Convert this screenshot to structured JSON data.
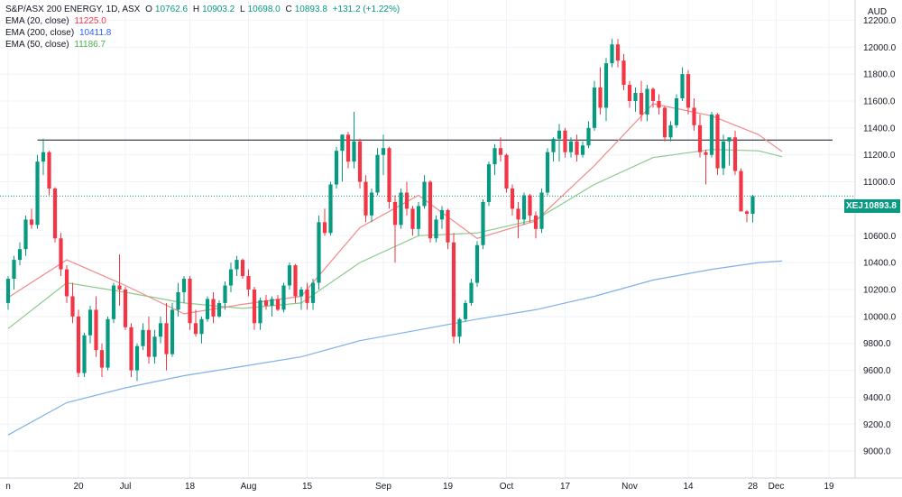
{
  "title_bar": {
    "symbol": "S&P/ASX 200 ENERGY, 1D, ASX",
    "open_label": "O",
    "open": "10762.6",
    "high_label": "H",
    "high": "10903.2",
    "low_label": "L",
    "low": "10698.0",
    "close_label": "C",
    "close": "10893.8",
    "change": "+131.2 (+1.22%)"
  },
  "currency": "AUD",
  "indicators": [
    {
      "name": "EMA (20, close)",
      "value": "11225.0",
      "color": "#f23645"
    },
    {
      "name": "EMA (200, close)",
      "value": "10411.8",
      "color": "#2962ff"
    },
    {
      "name": "EMA (50, close)",
      "value": "11186.7",
      "color": "#4caf50"
    }
  ],
  "last_price": {
    "symbol": "XEJ",
    "value": "10893.8",
    "color": "#089981"
  },
  "chart_data": {
    "type": "candlestick",
    "ylim": [
      8800,
      12350
    ],
    "y_ticks": [
      9000,
      9200,
      9400,
      9600,
      9800,
      10000,
      10200,
      10400,
      10600,
      10800,
      11000,
      11200,
      11400,
      11600,
      11800,
      12000,
      12200
    ],
    "y_tick_labels": [
      "9000.0",
      "9200.0",
      "9400.0",
      "9600.0",
      "9800.0",
      "10000.0",
      "10200.0",
      "10400.0",
      "10600.0",
      "10800.0",
      "11000.0",
      "11200.0",
      "11400.0",
      "11600.0",
      "11800.0",
      "12000.0",
      "12200.0"
    ],
    "x_tick_labels": [
      {
        "i": 0,
        "label": "n"
      },
      {
        "i": 12,
        "label": "20"
      },
      {
        "i": 20,
        "label": "Jul"
      },
      {
        "i": 31,
        "label": "18"
      },
      {
        "i": 41,
        "label": "Aug"
      },
      {
        "i": 51,
        "label": "15"
      },
      {
        "i": 64,
        "label": "Sep"
      },
      {
        "i": 75,
        "label": "19"
      },
      {
        "i": 85,
        "label": "Oct"
      },
      {
        "i": 95,
        "label": "17"
      },
      {
        "i": 106,
        "label": "Nov"
      },
      {
        "i": 116,
        "label": "14"
      },
      {
        "i": 127,
        "label": "28"
      },
      {
        "i": 131,
        "label": "Dec"
      },
      {
        "i": 140,
        "label": "19"
      }
    ],
    "resistance": 11310,
    "ohlc": [
      [
        10100,
        10300,
        10050,
        10280
      ],
      [
        10280,
        10450,
        10200,
        10420
      ],
      [
        10420,
        10550,
        10380,
        10500
      ],
      [
        10500,
        10750,
        10450,
        10720
      ],
      [
        10720,
        10800,
        10650,
        10680
      ],
      [
        10680,
        11200,
        10650,
        11150
      ],
      [
        11150,
        11320,
        11050,
        11220
      ],
      [
        11220,
        11230,
        10900,
        10950
      ],
      [
        10950,
        10960,
        10550,
        10580
      ],
      [
        10580,
        10620,
        10300,
        10350
      ],
      [
        10350,
        10380,
        10100,
        10150
      ],
      [
        10150,
        10250,
        9950,
        10000
      ],
      [
        10000,
        10050,
        9550,
        9580
      ],
      [
        9580,
        9880,
        9550,
        9860
      ],
      [
        9860,
        10080,
        9800,
        10050
      ],
      [
        10050,
        10150,
        9700,
        9750
      ],
      [
        9750,
        9800,
        9550,
        9620
      ],
      [
        9620,
        10000,
        9600,
        9980
      ],
      [
        9980,
        10250,
        9950,
        10230
      ],
      [
        10230,
        10460,
        10080,
        10200
      ],
      [
        10200,
        10220,
        9900,
        9920
      ],
      [
        9920,
        9950,
        9550,
        9600
      ],
      [
        9600,
        9800,
        9520,
        9780
      ],
      [
        9780,
        9950,
        9750,
        9900
      ],
      [
        9900,
        10000,
        9650,
        9700
      ],
      [
        9700,
        9900,
        9650,
        9850
      ],
      [
        9850,
        10000,
        9800,
        9950
      ],
      [
        9950,
        10100,
        9600,
        9720
      ],
      [
        9720,
        10100,
        9700,
        10050
      ],
      [
        10050,
        10250,
        10000,
        10180
      ],
      [
        10180,
        10300,
        10100,
        10280
      ],
      [
        10280,
        10300,
        9900,
        9950
      ],
      [
        9950,
        10050,
        9850,
        9870
      ],
      [
        9870,
        10000,
        9800,
        9980
      ],
      [
        9980,
        10150,
        9960,
        10130
      ],
      [
        10130,
        10180,
        9950,
        10000
      ],
      [
        10000,
        10120,
        9990,
        10100
      ],
      [
        10100,
        10260,
        10050,
        10230
      ],
      [
        10230,
        10400,
        10180,
        10350
      ],
      [
        10350,
        10450,
        10300,
        10420
      ],
      [
        10420,
        10430,
        10280,
        10300
      ],
      [
        10300,
        10350,
        10150,
        10200
      ],
      [
        10200,
        10220,
        9900,
        9950
      ],
      [
        9950,
        10140,
        9900,
        10120
      ],
      [
        10120,
        10160,
        10050,
        10080
      ],
      [
        10080,
        10150,
        10000,
        10130
      ],
      [
        10130,
        10160,
        10040,
        10050
      ],
      [
        10050,
        10250,
        10030,
        10230
      ],
      [
        10230,
        10400,
        10200,
        10380
      ],
      [
        10380,
        10390,
        10100,
        10150
      ],
      [
        10150,
        10220,
        10050,
        10200
      ],
      [
        10200,
        10250,
        10050,
        10100
      ],
      [
        10100,
        10280,
        10050,
        10250
      ],
      [
        10250,
        10750,
        10200,
        10700
      ],
      [
        10700,
        10800,
        10600,
        10620
      ],
      [
        10620,
        11000,
        10600,
        10980
      ],
      [
        10980,
        11260,
        10950,
        11230
      ],
      [
        11230,
        11350,
        11000,
        11350
      ],
      [
        11350,
        11370,
        11100,
        11150
      ],
      [
        11150,
        11520,
        11100,
        11300
      ],
      [
        11300,
        11320,
        10950,
        11000
      ],
      [
        11000,
        11050,
        10700,
        10750
      ],
      [
        10750,
        10950,
        10700,
        10920
      ],
      [
        10920,
        11250,
        10900,
        11200
      ],
      [
        11200,
        11350,
        11050,
        11250
      ],
      [
        11250,
        11260,
        10800,
        10850
      ],
      [
        10850,
        10900,
        10400,
        10680
      ],
      [
        10680,
        10950,
        10650,
        10920
      ],
      [
        10920,
        11000,
        10750,
        10800
      ],
      [
        10800,
        10820,
        10600,
        10650
      ],
      [
        10650,
        10850,
        10600,
        10820
      ],
      [
        10820,
        11050,
        10800,
        11000
      ],
      [
        11000,
        11010,
        10550,
        10580
      ],
      [
        10580,
        10750,
        10550,
        10720
      ],
      [
        10720,
        10820,
        10650,
        10790
      ],
      [
        10790,
        10800,
        10500,
        10550
      ],
      [
        10550,
        10620,
        9800,
        9850
      ],
      [
        9850,
        9990,
        9800,
        9980
      ],
      [
        9980,
        10120,
        9960,
        10100
      ],
      [
        10100,
        10280,
        10080,
        10250
      ],
      [
        10250,
        10560,
        10220,
        10530
      ],
      [
        10530,
        10870,
        10500,
        10850
      ],
      [
        10850,
        11150,
        10820,
        11130
      ],
      [
        11130,
        11280,
        11050,
        11250
      ],
      [
        11250,
        11330,
        11150,
        11200
      ],
      [
        11200,
        11210,
        10920,
        10950
      ],
      [
        10950,
        10980,
        10750,
        10800
      ],
      [
        10800,
        10850,
        10580,
        10720
      ],
      [
        10720,
        10920,
        10680,
        10900
      ],
      [
        10900,
        10910,
        10700,
        10750
      ],
      [
        10750,
        10780,
        10580,
        10650
      ],
      [
        10650,
        10950,
        10620,
        10920
      ],
      [
        10920,
        11250,
        10900,
        11220
      ],
      [
        11220,
        11330,
        11150,
        11320
      ],
      [
        11320,
        11430,
        11150,
        11380
      ],
      [
        11380,
        11400,
        11180,
        11220
      ],
      [
        11220,
        11330,
        11180,
        11300
      ],
      [
        11300,
        11350,
        11150,
        11200
      ],
      [
        11200,
        11300,
        11180,
        11270
      ],
      [
        11270,
        11450,
        11250,
        11400
      ],
      [
        11400,
        11750,
        11380,
        11700
      ],
      [
        11700,
        11850,
        11500,
        11550
      ],
      [
        11550,
        11920,
        11450,
        11880
      ],
      [
        11880,
        12060,
        11850,
        12020
      ],
      [
        12020,
        12060,
        11850,
        11900
      ],
      [
        11900,
        11950,
        11680,
        11720
      ],
      [
        11720,
        11750,
        11550,
        11600
      ],
      [
        11600,
        11700,
        11520,
        11660
      ],
      [
        11660,
        11750,
        11450,
        11500
      ],
      [
        11500,
        11720,
        11450,
        11690
      ],
      [
        11690,
        11700,
        11550,
        11600
      ],
      [
        11600,
        11650,
        11500,
        11550
      ],
      [
        11550,
        11560,
        11300,
        11330
      ],
      [
        11330,
        11450,
        11300,
        11420
      ],
      [
        11420,
        11650,
        11400,
        11620
      ],
      [
        11620,
        11850,
        11600,
        11800
      ],
      [
        11800,
        11830,
        11500,
        11550
      ],
      [
        11550,
        11620,
        11380,
        11420
      ],
      [
        11420,
        11500,
        11180,
        11220
      ],
      [
        11220,
        11240,
        10980,
        11200
      ],
      [
        11200,
        11520,
        11180,
        11500
      ],
      [
        11500,
        11510,
        11050,
        11100
      ],
      [
        11100,
        11350,
        11050,
        11300
      ],
      [
        11300,
        11320,
        11120,
        11330
      ],
      [
        11330,
        11380,
        11050,
        11080
      ],
      [
        11080,
        11100,
        10800,
        10780
      ],
      [
        10780,
        10790,
        10700,
        10762.6
      ],
      [
        10762.6,
        10903.2,
        10698,
        10893.8
      ]
    ],
    "ema20": [
      [
        0,
        10140
      ],
      [
        10,
        10420
      ],
      [
        20,
        10230
      ],
      [
        30,
        10020
      ],
      [
        40,
        10090
      ],
      [
        50,
        10150
      ],
      [
        60,
        10660
      ],
      [
        70,
        10900
      ],
      [
        80,
        10580
      ],
      [
        90,
        10710
      ],
      [
        100,
        11120
      ],
      [
        110,
        11580
      ],
      [
        120,
        11490
      ],
      [
        128,
        11350
      ],
      [
        132,
        11225
      ]
    ],
    "ema50": [
      [
        0,
        9910
      ],
      [
        10,
        10250
      ],
      [
        20,
        10180
      ],
      [
        30,
        10100
      ],
      [
        40,
        10060
      ],
      [
        50,
        10100
      ],
      [
        60,
        10400
      ],
      [
        70,
        10600
      ],
      [
        80,
        10620
      ],
      [
        90,
        10720
      ],
      [
        100,
        10980
      ],
      [
        110,
        11180
      ],
      [
        120,
        11240
      ],
      [
        128,
        11230
      ],
      [
        132,
        11186.7
      ]
    ],
    "ema200": [
      [
        0,
        9120
      ],
      [
        10,
        9360
      ],
      [
        20,
        9470
      ],
      [
        30,
        9560
      ],
      [
        40,
        9630
      ],
      [
        50,
        9700
      ],
      [
        60,
        9820
      ],
      [
        70,
        9900
      ],
      [
        80,
        9980
      ],
      [
        90,
        10050
      ],
      [
        100,
        10150
      ],
      [
        110,
        10270
      ],
      [
        120,
        10350
      ],
      [
        128,
        10400
      ],
      [
        132,
        10411.8
      ]
    ]
  }
}
